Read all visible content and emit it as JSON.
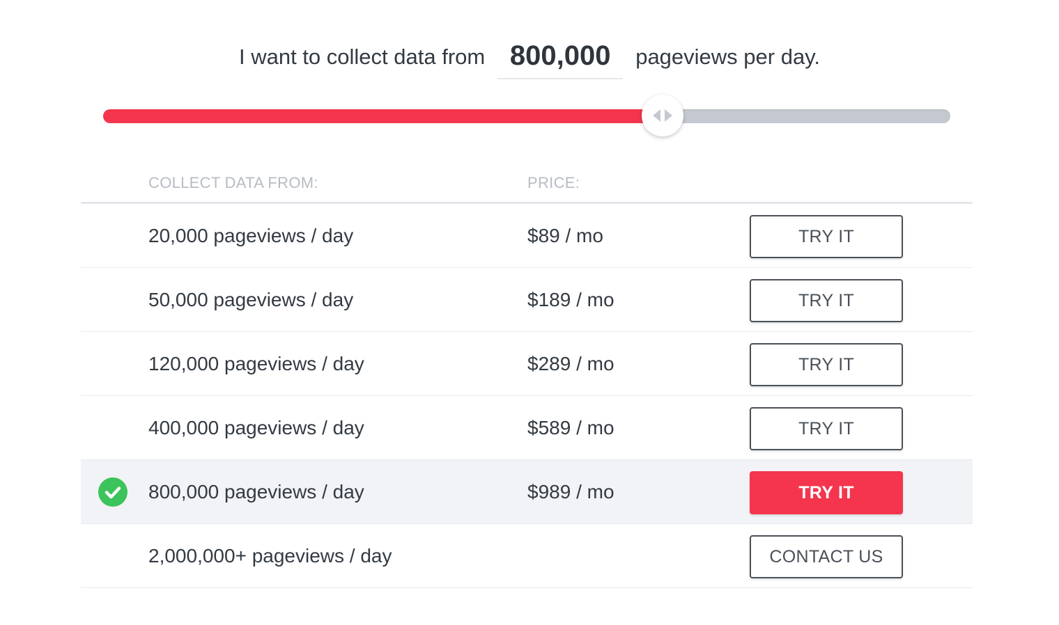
{
  "header": {
    "prefix": "I want to collect data from",
    "value": "800,000",
    "suffix": "pageviews per day."
  },
  "slider": {
    "fraction": 0.66,
    "fill_color": "#f4354d",
    "track_color": "#c4c9d1",
    "handle_icon": "left-right-arrows-icon"
  },
  "table": {
    "headers": {
      "views": "COLLECT DATA FROM:",
      "price": "PRICE:"
    },
    "rows": [
      {
        "views": "20,000 pageviews / day",
        "price": "$89 / mo",
        "button": "TRY IT",
        "selected": false
      },
      {
        "views": "50,000 pageviews / day",
        "price": "$189 / mo",
        "button": "TRY IT",
        "selected": false
      },
      {
        "views": "120,000 pageviews / day",
        "price": "$289 / mo",
        "button": "TRY IT",
        "selected": false
      },
      {
        "views": "400,000 pageviews / day",
        "price": "$589 / mo",
        "button": "TRY IT",
        "selected": false
      },
      {
        "views": "800,000 pageviews / day",
        "price": "$989 / mo",
        "button": "TRY IT",
        "selected": true
      },
      {
        "views": "2,000,000+ pageviews / day",
        "price": "",
        "button": "CONTACT US",
        "selected": false
      }
    ]
  },
  "colors": {
    "accent": "#f4354d",
    "check": "#3cc35b",
    "selected_row_bg": "#f2f3f6"
  },
  "icons": {
    "selected_row": "check-circle-icon"
  }
}
